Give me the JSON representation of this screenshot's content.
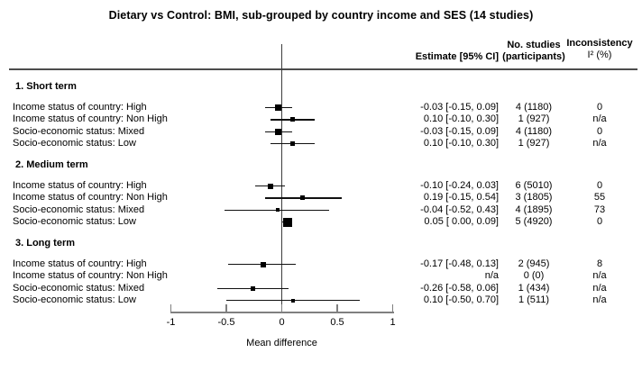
{
  "title": "Dietary vs Control: BMI, sub-grouped by country income and SES (14 studies)",
  "columns": {
    "estimate": "Estimate [95% CI]",
    "studies_line1": "No. studies",
    "studies_line2": "(participants)",
    "inconsistency_line1": "Inconsistency",
    "inconsistency_line2": "I² (%)"
  },
  "colors": {
    "text": "#000000",
    "axis": "#808080",
    "zero_line": "#3d3d3d",
    "header_rule": "#4d4d4d",
    "ci_line": "#111111",
    "marker": "#000000"
  },
  "chart_data": {
    "type": "forest",
    "title": "Dietary vs Control: BMI, sub-grouped by country income and SES (14 studies)",
    "xlabel": "Mean difference",
    "xlim": [
      -1,
      1
    ],
    "x_ticks": [
      -1,
      -0.5,
      0,
      0.5,
      1
    ],
    "x_tick_labels": [
      "-1",
      "-0.5",
      "0",
      "0.5",
      "1"
    ],
    "zero_reference": 0,
    "sections": [
      {
        "label": "1. Short term",
        "rows": [
          {
            "label": "Income status of country: High",
            "estimate": -0.03,
            "ci_low": -0.15,
            "ci_high": 0.09,
            "estimate_text": "-0.03 [-0.15, 0.09]",
            "studies": "4 (1180)",
            "i2": "0",
            "marker_size": 7
          },
          {
            "label": "Income status of country: Non High",
            "estimate": 0.1,
            "ci_low": -0.1,
            "ci_high": 0.3,
            "estimate_text": "0.10 [-0.10, 0.30]",
            "studies": "1 (927)",
            "i2": "n/a",
            "marker_size": 5
          },
          {
            "label": "Socio-economic status: Mixed",
            "estimate": -0.03,
            "ci_low": -0.15,
            "ci_high": 0.09,
            "estimate_text": "-0.03 [-0.15, 0.09]",
            "studies": "4 (1180)",
            "i2": "0",
            "marker_size": 7
          },
          {
            "label": "Socio-economic status: Low",
            "estimate": 0.1,
            "ci_low": -0.1,
            "ci_high": 0.3,
            "estimate_text": "0.10 [-0.10, 0.30]",
            "studies": "1 (927)",
            "i2": "n/a",
            "marker_size": 5
          }
        ]
      },
      {
        "label": "2. Medium term",
        "rows": [
          {
            "label": "Income status of country: High",
            "estimate": -0.1,
            "ci_low": -0.24,
            "ci_high": 0.03,
            "estimate_text": "-0.10 [-0.24, 0.03]",
            "studies": "6 (5010)",
            "i2": "0",
            "marker_size": 6
          },
          {
            "label": "Income status of country: Non High",
            "estimate": 0.19,
            "ci_low": -0.15,
            "ci_high": 0.54,
            "estimate_text": "0.19 [-0.15, 0.54]",
            "studies": "3 (1805)",
            "i2": "55",
            "marker_size": 5
          },
          {
            "label": "Socio-economic status: Mixed",
            "estimate": -0.04,
            "ci_low": -0.52,
            "ci_high": 0.43,
            "estimate_text": "-0.04 [-0.52, 0.43]",
            "studies": "4 (1895)",
            "i2": "73",
            "marker_size": 4
          },
          {
            "label": "Socio-economic status: Low",
            "estimate": 0.05,
            "ci_low": 0.0,
            "ci_high": 0.09,
            "estimate_text": "0.05 [ 0.00, 0.09]",
            "studies": "5 (4920)",
            "i2": "0",
            "marker_size": 10
          }
        ]
      },
      {
        "label": "3. Long term",
        "rows": [
          {
            "label": "Income status of country: High",
            "estimate": -0.17,
            "ci_low": -0.48,
            "ci_high": 0.13,
            "estimate_text": "-0.17 [-0.48, 0.13]",
            "studies": "2 (945)",
            "i2": "8",
            "marker_size": 6
          },
          {
            "label": "Income status of country: Non High",
            "estimate": null,
            "ci_low": null,
            "ci_high": null,
            "estimate_text": "n/a",
            "studies": "0 (0)",
            "i2": "n/a",
            "marker_size": null
          },
          {
            "label": "Socio-economic status: Mixed",
            "estimate": -0.26,
            "ci_low": -0.58,
            "ci_high": 0.06,
            "estimate_text": "-0.26 [-0.58, 0.06]",
            "studies": "1 (434)",
            "i2": "n/a",
            "marker_size": 5
          },
          {
            "label": "Socio-economic status: Low",
            "estimate": 0.1,
            "ci_low": -0.5,
            "ci_high": 0.7,
            "estimate_text": "0.10 [-0.50, 0.70]",
            "studies": "1 (511)",
            "i2": "n/a",
            "marker_size": 4
          }
        ]
      }
    ]
  }
}
